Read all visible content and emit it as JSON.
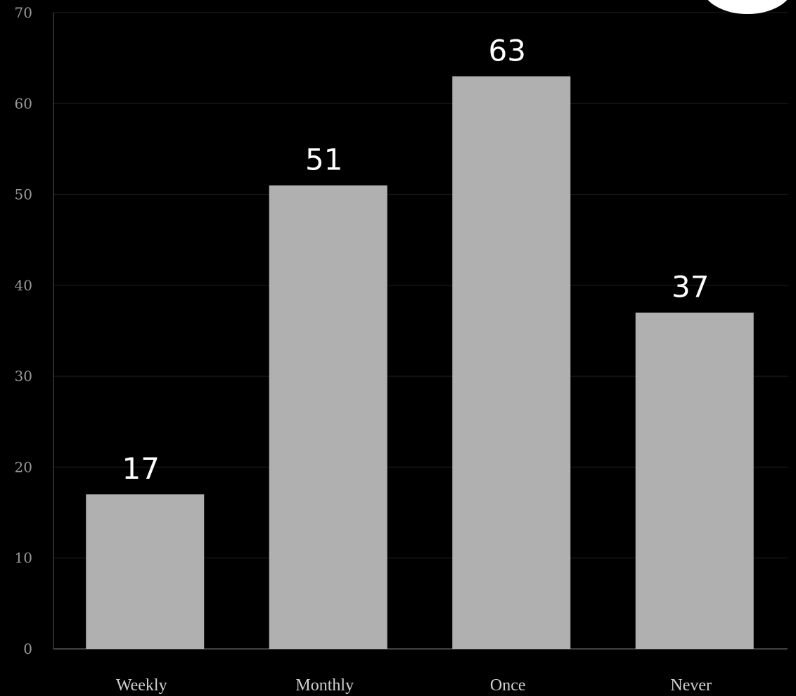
{
  "chart_data": {
    "type": "bar",
    "categories": [
      "Weekly",
      "Monthly",
      "Once",
      "Never"
    ],
    "values": [
      17,
      51,
      63,
      37
    ],
    "data_labels": [
      "17",
      "51",
      "63",
      "37"
    ],
    "ylim": [
      0,
      70
    ],
    "yticks": [
      "0",
      "10",
      "20",
      "30",
      "40",
      "50",
      "60",
      "70"
    ],
    "grid": true,
    "title": "",
    "xlabel": "",
    "ylabel": "",
    "colors": {
      "background": "#000000",
      "bar": "#b0b0b0",
      "grid": "#1e1e1e",
      "axis": "#555555",
      "data_label": "#ffffff"
    }
  }
}
